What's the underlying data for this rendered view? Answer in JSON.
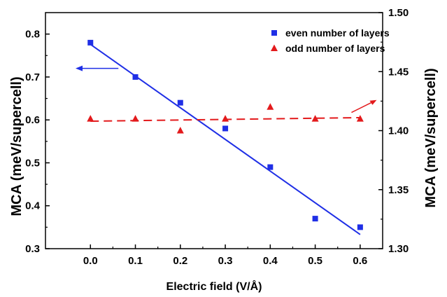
{
  "chart_data": {
    "type": "scatter",
    "xlabel": "Electric field (V/Å)",
    "ylabel_left": "MCA (meV/supercell)",
    "ylabel_right": "MCA (meV/supercell)",
    "xlim": [
      -0.1,
      0.65
    ],
    "ylim_left": [
      0.3,
      0.85
    ],
    "ylim_right": [
      1.3,
      1.5
    ],
    "x_ticks": [
      "0.0",
      "0.1",
      "0.2",
      "0.3",
      "0.4",
      "0.5",
      "0.6"
    ],
    "y_left_ticks": [
      "0.3",
      "0.4",
      "0.5",
      "0.6",
      "0.7",
      "0.8"
    ],
    "y_right_ticks": [
      "1.30",
      "1.35",
      "1.40",
      "1.45",
      "1.50"
    ],
    "legend_position": "top-right",
    "series": [
      {
        "name": "even number of layers",
        "axis": "left",
        "marker": "square",
        "color": "#1f2fe6",
        "x": [
          0.0,
          0.1,
          0.2,
          0.3,
          0.4,
          0.5,
          0.6
        ],
        "y": [
          0.78,
          0.7,
          0.64,
          0.58,
          0.49,
          0.37,
          0.35
        ],
        "fit": {
          "style": "solid",
          "x": [
            0.0,
            0.6
          ],
          "y": [
            0.776,
            0.333
          ]
        }
      },
      {
        "name": "odd number of layers",
        "axis": "right",
        "marker": "triangle",
        "color": "#e31a1c",
        "x": [
          0.0,
          0.1,
          0.2,
          0.3,
          0.4,
          0.5,
          0.6
        ],
        "y": [
          1.41,
          1.41,
          1.4,
          1.41,
          1.42,
          1.41,
          1.41
        ],
        "fit": {
          "style": "dashed",
          "x": [
            0.0,
            0.6
          ],
          "y": [
            1.408,
            1.411
          ]
        }
      }
    ],
    "annotations": [
      {
        "type": "arrow",
        "points_to": "left-axis",
        "color": "#1f2fe6"
      },
      {
        "type": "arrow",
        "points_to": "right-axis",
        "color": "#e31a1c"
      }
    ]
  }
}
